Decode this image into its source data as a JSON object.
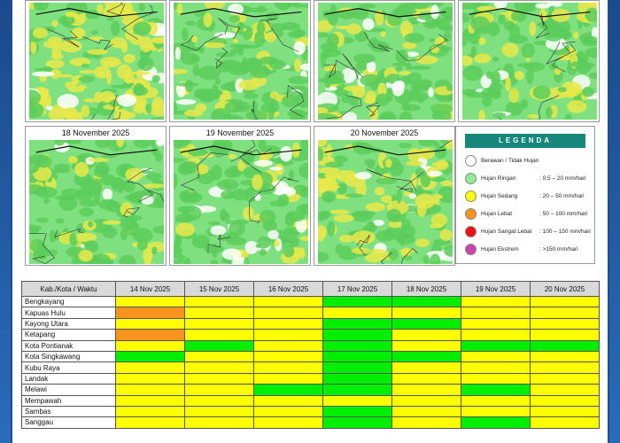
{
  "maps": {
    "top_row": [
      {
        "caption": ""
      },
      {
        "caption": ""
      },
      {
        "caption": ""
      },
      {
        "caption": ""
      }
    ],
    "bottom_row": [
      {
        "caption": "18 November 2025"
      },
      {
        "caption": "19 November 2025"
      },
      {
        "caption": "20 November 2025"
      }
    ]
  },
  "legend": {
    "title": "LEGENDA",
    "items": [
      {
        "label": "Berawan / Tidak Hujan",
        "range": "",
        "color": "#ffffff"
      },
      {
        "label": "Hujan Ringan",
        "range": ": 0.5 – 20 mm/hari",
        "color": "#90ee90"
      },
      {
        "label": "Hujan Sedang",
        "range": ": 20 – 50 mm/hari",
        "color": "#ffff00"
      },
      {
        "label": "Hujan Lebat",
        "range": ": 50 – 100 mm/hari",
        "color": "#f7931e"
      },
      {
        "label": "Hujan Sangat Lebat",
        "range": ": 100 – 150 mm/hari",
        "color": "#ee1111"
      },
      {
        "label": "Hujan Ekstrem",
        "range": ": >150 mm/hari",
        "color": "#cc44aa"
      }
    ]
  },
  "table": {
    "header": [
      "Kab./Kota / Waktu",
      "14 Nov 2025",
      "15 Nov 2025",
      "16 Nov 2025",
      "17 Nov 2025",
      "18 Nov 2025",
      "19 Nov 2025",
      "20 Nov 2025"
    ],
    "colors": {
      "Y": "#ffff00",
      "G": "#00ee00",
      "O": "#f7931e"
    },
    "rows": [
      {
        "name": "Bengkayang",
        "cells": [
          "Y",
          "Y",
          "Y",
          "G",
          "G",
          "Y",
          "Y"
        ]
      },
      {
        "name": "Kapuas Hulu",
        "cells": [
          "O",
          "Y",
          "Y",
          "Y",
          "Y",
          "Y",
          "Y"
        ]
      },
      {
        "name": "Kayong Utara",
        "cells": [
          "Y",
          "Y",
          "Y",
          "G",
          "G",
          "Y",
          "Y"
        ]
      },
      {
        "name": "Ketapang",
        "cells": [
          "O",
          "Y",
          "Y",
          "G",
          "Y",
          "Y",
          "Y"
        ]
      },
      {
        "name": "Kota Pontianak",
        "cells": [
          "Y",
          "G",
          "Y",
          "G",
          "Y",
          "G",
          "G"
        ]
      },
      {
        "name": "Kota Singkawang",
        "cells": [
          "G",
          "Y",
          "Y",
          "G",
          "G",
          "Y",
          "Y"
        ]
      },
      {
        "name": "Kubu Raya",
        "cells": [
          "Y",
          "Y",
          "Y",
          "G",
          "Y",
          "Y",
          "Y"
        ]
      },
      {
        "name": "Landak",
        "cells": [
          "Y",
          "Y",
          "Y",
          "G",
          "Y",
          "Y",
          "Y"
        ]
      },
      {
        "name": "Melawi",
        "cells": [
          "Y",
          "Y",
          "G",
          "G",
          "Y",
          "G",
          "Y"
        ]
      },
      {
        "name": "Mempawah",
        "cells": [
          "Y",
          "Y",
          "Y",
          "Y",
          "Y",
          "Y",
          "Y"
        ]
      },
      {
        "name": "Sambas",
        "cells": [
          "Y",
          "Y",
          "Y",
          "G",
          "Y",
          "Y",
          "Y"
        ]
      },
      {
        "name": "Sanggau",
        "cells": [
          "Y",
          "Y",
          "Y",
          "G",
          "Y",
          "G",
          "Y"
        ]
      }
    ]
  }
}
